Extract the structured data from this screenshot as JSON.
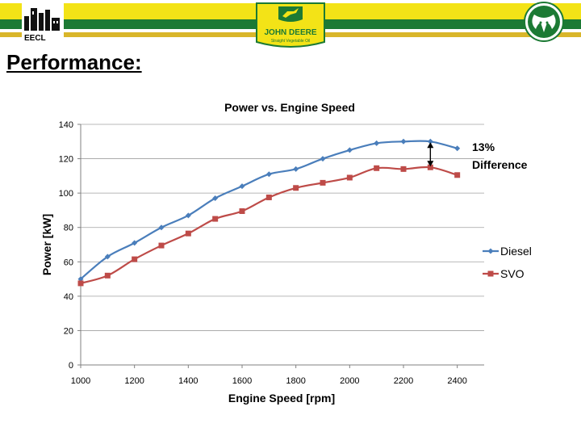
{
  "slide": {
    "title": "Performance:",
    "logos": {
      "left": {
        "text": "EECL",
        "icon": "factory-building-icon"
      },
      "center": {
        "line1": "JOHN DEERE",
        "line2": "Straight Vegetable Oil",
        "icon": "leaping-deer-icon"
      },
      "right": {
        "icon": "ram-head-icon"
      }
    },
    "colors": {
      "green": "#1c7a34",
      "yellow": "#f3e317",
      "gold": "#d9b62a"
    }
  },
  "chart_data": {
    "type": "line",
    "title": "Power vs. Engine Speed",
    "xlabel": "Engine Speed [rpm]",
    "ylabel": "Power [kW]",
    "xlim": [
      1000,
      2500
    ],
    "ylim": [
      0,
      140
    ],
    "x_ticks": [
      1000,
      1200,
      1400,
      1600,
      1800,
      2000,
      2200,
      2400
    ],
    "y_ticks": [
      0,
      20,
      40,
      60,
      80,
      100,
      120,
      140
    ],
    "grid": "horizontal",
    "legend": "right",
    "series": [
      {
        "name": "Diesel",
        "color": "#4a7ebb",
        "marker": "diamond",
        "x": [
          1000,
          1100,
          1200,
          1300,
          1400,
          1500,
          1600,
          1700,
          1800,
          1900,
          2000,
          2100,
          2200,
          2300,
          2400
        ],
        "values": [
          50,
          63,
          71,
          80,
          87,
          97,
          104,
          111,
          114,
          120,
          125,
          129,
          130,
          130,
          126
        ]
      },
      {
        "name": "SVO",
        "color": "#be4b48",
        "marker": "square",
        "x": [
          1000,
          1100,
          1200,
          1300,
          1400,
          1500,
          1600,
          1700,
          1800,
          1900,
          2000,
          2100,
          2200,
          2300,
          2400
        ],
        "values": [
          47.5,
          52,
          61.5,
          69.5,
          76.5,
          85,
          89.5,
          97.5,
          103,
          106,
          109,
          114.5,
          114,
          115,
          110.5
        ]
      }
    ],
    "annotations": [
      {
        "text_lines": [
          "13%",
          "Difference"
        ],
        "x": 2300,
        "y_from": 130,
        "y_to": 115
      }
    ]
  }
}
